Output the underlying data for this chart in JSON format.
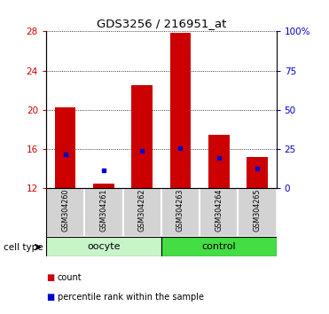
{
  "title": "GDS3256 / 216951_at",
  "samples": [
    "GSM304260",
    "GSM304261",
    "GSM304262",
    "GSM304263",
    "GSM304264",
    "GSM304265"
  ],
  "red_bar_bottom": 12,
  "red_bar_top": [
    20.3,
    12.5,
    22.5,
    27.9,
    17.5,
    15.2
  ],
  "blue_marker_pos": [
    15.5,
    13.8,
    15.8,
    16.1,
    15.1,
    14.0
  ],
  "ylim_left": [
    12,
    28
  ],
  "ylim_right": [
    0,
    100
  ],
  "yticks_left": [
    12,
    16,
    20,
    24,
    28
  ],
  "yticks_right": [
    0,
    25,
    50,
    75,
    100
  ],
  "ytick_labels_right": [
    "0",
    "25",
    "50",
    "75",
    "100%"
  ],
  "left_tick_color": "#cc0000",
  "right_tick_color": "#0000cc",
  "bar_color": "#cc0000",
  "blue_color": "#0000cc",
  "group_bg_oocyte": "#c8f5c8",
  "group_bg_control": "#44dd44",
  "cell_type_label": "cell type",
  "legend_count": "count",
  "legend_percentile": "percentile rank within the sample",
  "bar_width": 0.55,
  "oocyte_label": "oocyte",
  "control_label": "control",
  "oocyte_indices": [
    0,
    1,
    2
  ],
  "control_indices": [
    3,
    4,
    5
  ]
}
